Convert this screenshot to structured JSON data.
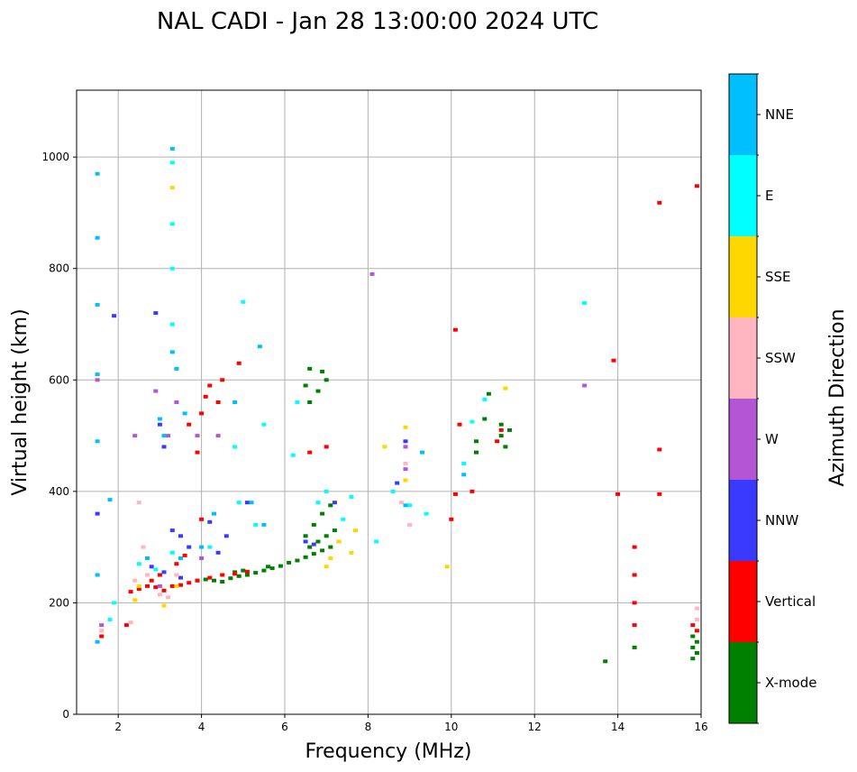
{
  "chart_data": {
    "type": "scatter",
    "title": "NAL CADI - Jan 28 13:00:00 2024 UTC",
    "xlabel": "Frequency (MHz)",
    "ylabel": "Virtual height (km)",
    "xlim": [
      1,
      16
    ],
    "ylim": [
      0,
      1120
    ],
    "xticks": [
      2,
      4,
      6,
      8,
      10,
      12,
      14,
      16
    ],
    "yticks": [
      0,
      200,
      400,
      600,
      800,
      1000
    ],
    "grid": true,
    "colorbar": {
      "title": "Azimuth Direction",
      "categories": [
        {
          "name": "X-mode",
          "color": "#008000"
        },
        {
          "name": "Vertical",
          "color": "#ff0000"
        },
        {
          "name": "NNW",
          "color": "#3a3aff"
        },
        {
          "name": "W",
          "color": "#b455d6"
        },
        {
          "name": "SSW",
          "color": "#ffb6c1"
        },
        {
          "name": "SSE",
          "color": "#ffd700"
        },
        {
          "name": "E",
          "color": "#00ffff"
        },
        {
          "name": "NNE",
          "color": "#00bfff"
        }
      ]
    },
    "series": [
      {
        "name": "X-mode",
        "points": [
          [
            3.9,
            240
          ],
          [
            4.1,
            242
          ],
          [
            4.3,
            240
          ],
          [
            4.5,
            238
          ],
          [
            4.7,
            244
          ],
          [
            4.9,
            248
          ],
          [
            5.1,
            250
          ],
          [
            5.3,
            254
          ],
          [
            5.5,
            258
          ],
          [
            5.7,
            262
          ],
          [
            5.9,
            266
          ],
          [
            6.1,
            272
          ],
          [
            6.3,
            276
          ],
          [
            6.5,
            282
          ],
          [
            6.7,
            288
          ],
          [
            6.9,
            294
          ],
          [
            7.1,
            300
          ],
          [
            7.3,
            310
          ],
          [
            6.6,
            300
          ],
          [
            6.8,
            310
          ],
          [
            7.0,
            320
          ],
          [
            7.2,
            330
          ],
          [
            6.5,
            320
          ],
          [
            6.7,
            340
          ],
          [
            6.9,
            360
          ],
          [
            7.1,
            375
          ],
          [
            6.6,
            620
          ],
          [
            6.9,
            615
          ],
          [
            6.6,
            560
          ],
          [
            6.8,
            580
          ],
          [
            7.0,
            600
          ],
          [
            10.6,
            470
          ],
          [
            10.6,
            490
          ],
          [
            10.8,
            530
          ],
          [
            10.9,
            575
          ],
          [
            11.2,
            500
          ],
          [
            11.2,
            520
          ],
          [
            11.3,
            480
          ],
          [
            11.4,
            510
          ],
          [
            14.4,
            120
          ],
          [
            13.7,
            95
          ],
          [
            15.8,
            100
          ],
          [
            15.8,
            120
          ],
          [
            15.8,
            140
          ],
          [
            15.9,
            110
          ],
          [
            15.9,
            130
          ],
          [
            6.5,
            590
          ],
          [
            4.8,
            255
          ],
          [
            5.0,
            258
          ],
          [
            5.6,
            265
          ]
        ]
      },
      {
        "name": "Vertical",
        "points": [
          [
            2.3,
            220
          ],
          [
            2.5,
            225
          ],
          [
            2.7,
            230
          ],
          [
            2.9,
            228
          ],
          [
            3.1,
            222
          ],
          [
            3.3,
            230
          ],
          [
            3.5,
            232
          ],
          [
            3.7,
            236
          ],
          [
            3.9,
            240
          ],
          [
            4.2,
            245
          ],
          [
            4.5,
            250
          ],
          [
            4.8,
            252
          ],
          [
            5.1,
            256
          ],
          [
            2.8,
            240
          ],
          [
            3.0,
            250
          ],
          [
            3.4,
            270
          ],
          [
            3.6,
            285
          ],
          [
            4.0,
            350
          ],
          [
            3.7,
            520
          ],
          [
            3.9,
            470
          ],
          [
            4.0,
            540
          ],
          [
            4.1,
            570
          ],
          [
            4.2,
            590
          ],
          [
            4.5,
            600
          ],
          [
            4.9,
            630
          ],
          [
            4.4,
            560
          ],
          [
            6.6,
            470
          ],
          [
            7.0,
            480
          ],
          [
            10.1,
            690
          ],
          [
            10.2,
            520
          ],
          [
            10.5,
            400
          ],
          [
            10.1,
            395
          ],
          [
            10.0,
            350
          ],
          [
            11.2,
            510
          ],
          [
            11.1,
            490
          ],
          [
            13.9,
            635
          ],
          [
            14.0,
            395
          ],
          [
            14.4,
            300
          ],
          [
            14.4,
            250
          ],
          [
            14.4,
            200
          ],
          [
            14.4,
            160
          ],
          [
            15.0,
            395
          ],
          [
            15.0,
            475
          ],
          [
            15.0,
            918
          ],
          [
            15.9,
            948
          ],
          [
            15.8,
            160
          ],
          [
            15.9,
            150
          ],
          [
            2.2,
            160
          ],
          [
            1.6,
            140
          ]
        ]
      },
      {
        "name": "NNW",
        "points": [
          [
            1.5,
            360
          ],
          [
            1.9,
            715
          ],
          [
            2.9,
            720
          ],
          [
            3.0,
            520
          ],
          [
            3.1,
            480
          ],
          [
            3.3,
            330
          ],
          [
            3.5,
            320
          ],
          [
            3.7,
            300
          ],
          [
            4.2,
            345
          ],
          [
            4.6,
            320
          ],
          [
            5.1,
            380
          ],
          [
            6.5,
            310
          ],
          [
            6.7,
            305
          ],
          [
            7.2,
            380
          ],
          [
            8.7,
            415
          ],
          [
            8.9,
            490
          ],
          [
            2.8,
            265
          ],
          [
            3.1,
            255
          ],
          [
            3.5,
            245
          ],
          [
            4.4,
            290
          ]
        ]
      },
      {
        "name": "W",
        "points": [
          [
            1.5,
            600
          ],
          [
            1.6,
            160
          ],
          [
            2.4,
            500
          ],
          [
            2.9,
            580
          ],
          [
            3.2,
            500
          ],
          [
            3.4,
            560
          ],
          [
            3.9,
            500
          ],
          [
            4.4,
            500
          ],
          [
            8.1,
            790
          ],
          [
            8.9,
            480
          ],
          [
            8.9,
            440
          ],
          [
            13.2,
            590
          ],
          [
            3.0,
            230
          ],
          [
            4.0,
            280
          ]
        ]
      },
      {
        "name": "SSW",
        "points": [
          [
            1.6,
            150
          ],
          [
            2.3,
            165
          ],
          [
            2.5,
            380
          ],
          [
            2.6,
            300
          ],
          [
            2.7,
            250
          ],
          [
            3.2,
            210
          ],
          [
            3.4,
            250
          ],
          [
            8.8,
            380
          ],
          [
            9.0,
            340
          ],
          [
            8.9,
            450
          ],
          [
            15.9,
            170
          ],
          [
            15.9,
            190
          ],
          [
            2.4,
            240
          ],
          [
            3.0,
            215
          ]
        ]
      },
      {
        "name": "SSE",
        "points": [
          [
            2.4,
            205
          ],
          [
            3.1,
            195
          ],
          [
            3.3,
            945
          ],
          [
            7.0,
            265
          ],
          [
            7.1,
            280
          ],
          [
            7.3,
            310
          ],
          [
            7.6,
            290
          ],
          [
            7.7,
            330
          ],
          [
            8.4,
            480
          ],
          [
            8.9,
            515
          ],
          [
            8.9,
            420
          ],
          [
            9.9,
            265
          ],
          [
            11.3,
            585
          ],
          [
            2.5,
            230
          ],
          [
            3.4,
            230
          ]
        ]
      },
      {
        "name": "E",
        "points": [
          [
            1.8,
            170
          ],
          [
            1.9,
            200
          ],
          [
            2.5,
            270
          ],
          [
            2.9,
            260
          ],
          [
            3.3,
            290
          ],
          [
            3.3,
            700
          ],
          [
            3.3,
            800
          ],
          [
            3.3,
            880
          ],
          [
            3.3,
            990
          ],
          [
            4.2,
            300
          ],
          [
            4.8,
            480
          ],
          [
            5.0,
            740
          ],
          [
            5.5,
            520
          ],
          [
            6.3,
            560
          ],
          [
            6.2,
            465
          ],
          [
            6.8,
            380
          ],
          [
            7.0,
            400
          ],
          [
            7.4,
            350
          ],
          [
            8.2,
            310
          ],
          [
            8.6,
            400
          ],
          [
            9.0,
            375
          ],
          [
            9.4,
            360
          ],
          [
            10.3,
            450
          ],
          [
            10.5,
            525
          ],
          [
            10.8,
            565
          ],
          [
            13.2,
            738
          ],
          [
            4.9,
            380
          ],
          [
            5.3,
            340
          ],
          [
            7.6,
            390
          ]
        ]
      },
      {
        "name": "NNE",
        "points": [
          [
            1.5,
            130
          ],
          [
            1.5,
            250
          ],
          [
            1.5,
            490
          ],
          [
            1.5,
            610
          ],
          [
            1.5,
            735
          ],
          [
            1.5,
            855
          ],
          [
            1.5,
            970
          ],
          [
            3.0,
            530
          ],
          [
            3.1,
            500
          ],
          [
            3.3,
            1015
          ],
          [
            3.3,
            650
          ],
          [
            3.4,
            620
          ],
          [
            3.6,
            540
          ],
          [
            4.0,
            300
          ],
          [
            4.3,
            360
          ],
          [
            4.8,
            560
          ],
          [
            5.2,
            380
          ],
          [
            5.5,
            340
          ],
          [
            5.4,
            660
          ],
          [
            3.5,
            280
          ],
          [
            2.7,
            280
          ],
          [
            8.9,
            375
          ],
          [
            9.3,
            470
          ],
          [
            10.3,
            430
          ],
          [
            1.8,
            385
          ]
        ]
      }
    ]
  }
}
